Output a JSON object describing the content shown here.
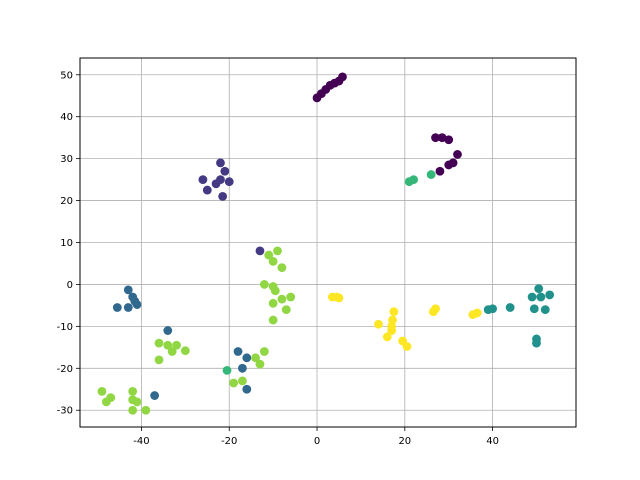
{
  "chart_data": {
    "type": "scatter",
    "title": "",
    "xlabel": "",
    "ylabel": "",
    "xlim": [
      -54,
      59
    ],
    "ylim": [
      -34,
      54
    ],
    "xticks": [
      -40,
      -20,
      0,
      20,
      40
    ],
    "yticks": [
      -30,
      -20,
      -10,
      0,
      10,
      20,
      30,
      40,
      50
    ],
    "grid": true,
    "legend": "none",
    "series": [
      {
        "color": "#440154",
        "points": [
          [
            0,
            44.5
          ],
          [
            1,
            45.5
          ],
          [
            2,
            46.5
          ],
          [
            3,
            47.5
          ],
          [
            4,
            48
          ],
          [
            5,
            48.5
          ],
          [
            5.8,
            49.5
          ],
          [
            27,
            35
          ],
          [
            28.5,
            35
          ],
          [
            30,
            34.5
          ],
          [
            32,
            31
          ],
          [
            31,
            29
          ],
          [
            30,
            28.5
          ],
          [
            28,
            27
          ]
        ]
      },
      {
        "color": "#443983",
        "points": [
          [
            -26,
            25
          ],
          [
            -25,
            22.5
          ],
          [
            -23,
            24
          ],
          [
            -22,
            29
          ],
          [
            -21,
            27
          ],
          [
            -22,
            25
          ],
          [
            -21.5,
            21
          ],
          [
            -20,
            24.5
          ],
          [
            -13,
            8
          ]
        ]
      },
      {
        "color": "#31688e",
        "points": [
          [
            -45.5,
            -5.5
          ],
          [
            -43,
            -1.3
          ],
          [
            -42,
            -3
          ],
          [
            -41.5,
            -4
          ],
          [
            -41,
            -4.8
          ],
          [
            -43,
            -5.5
          ],
          [
            -34,
            -11
          ],
          [
            -37,
            -26.5
          ],
          [
            -18,
            -16
          ],
          [
            -17,
            -20
          ],
          [
            -16,
            -17.5
          ],
          [
            -16,
            -25
          ]
        ]
      },
      {
        "color": "#21918c",
        "points": [
          [
            39,
            -6
          ],
          [
            40,
            -5.8
          ],
          [
            44,
            -5.5
          ],
          [
            49,
            -3
          ],
          [
            50.5,
            -1
          ],
          [
            51,
            -3
          ],
          [
            53,
            -2.5
          ],
          [
            49.5,
            -5.8
          ],
          [
            52,
            -6
          ],
          [
            50,
            -13
          ],
          [
            50,
            -14
          ]
        ]
      },
      {
        "color": "#35b779",
        "points": [
          [
            21,
            24.5
          ],
          [
            22,
            25
          ],
          [
            26,
            26.2
          ],
          [
            -20.5,
            -20.5
          ]
        ]
      },
      {
        "color": "#90d743",
        "points": [
          [
            -11,
            7
          ],
          [
            -10,
            5.5
          ],
          [
            -9,
            8
          ],
          [
            -8,
            4
          ],
          [
            -12,
            0
          ],
          [
            -10,
            -0.5
          ],
          [
            -9.5,
            -1.5
          ],
          [
            -6,
            -3
          ],
          [
            -8,
            -3.5
          ],
          [
            -10,
            -4.5
          ],
          [
            -7,
            -6
          ],
          [
            -10,
            -8.5
          ],
          [
            -12,
            -16
          ],
          [
            -14,
            -17.5
          ],
          [
            -13,
            -19
          ],
          [
            -17,
            -23
          ],
          [
            -19,
            -23.5
          ],
          [
            -36,
            -14
          ],
          [
            -34,
            -14.5
          ],
          [
            -33,
            -16
          ],
          [
            -32,
            -14.5
          ],
          [
            -30,
            -15.8
          ],
          [
            -36,
            -18
          ],
          [
            -49,
            -25.5
          ],
          [
            -48,
            -28
          ],
          [
            -47,
            -27
          ],
          [
            -42,
            -25.5
          ],
          [
            -42,
            -27.5
          ],
          [
            -41,
            -28
          ],
          [
            -42,
            -30
          ],
          [
            -39,
            -30
          ]
        ]
      },
      {
        "color": "#fde725",
        "points": [
          [
            3.5,
            -3
          ],
          [
            4.5,
            -3
          ],
          [
            5,
            -3.2
          ],
          [
            14,
            -9.5
          ],
          [
            16,
            -12.5
          ],
          [
            17,
            -10
          ],
          [
            17,
            -11
          ],
          [
            17.5,
            -6.5
          ],
          [
            17.2,
            -8.5
          ],
          [
            19.5,
            -13.5
          ],
          [
            20.5,
            -14.8
          ],
          [
            26.5,
            -6.5
          ],
          [
            27,
            -5.8
          ],
          [
            35.5,
            -7.2
          ],
          [
            36.5,
            -6.8
          ]
        ]
      }
    ]
  }
}
